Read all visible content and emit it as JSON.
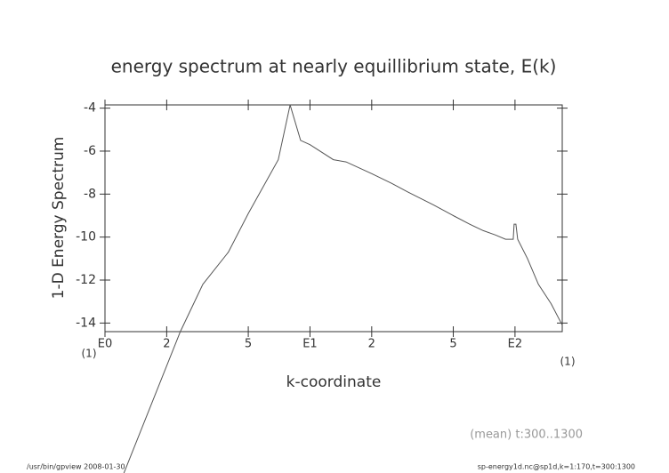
{
  "chart_data": {
    "type": "line",
    "title": "energy spectrum at nearly equillibrium state, E(k)",
    "x_label": "k-coordinate",
    "y_label": "1-D Energy Spectrum",
    "x_unit_left": "(1)",
    "x_unit_right": "(1)",
    "annotation": "(mean) t:300..1300",
    "footer_left": "/usr/bin/gpview   2008-01-30",
    "footer_right": "sp-energy1d.nc@sp1d,k=1:170,t=300:1300",
    "x_log": true,
    "xlim": [
      1,
      170
    ],
    "ylim": [
      -14.4,
      -3.85
    ],
    "xticks": [
      {
        "value": 1,
        "label": "E0"
      },
      2,
      5,
      {
        "value": 10,
        "label": "E1"
      },
      {
        "value": 20,
        "label": "2"
      },
      {
        "value": 50,
        "label": "5"
      },
      {
        "value": 100,
        "label": "E2"
      }
    ],
    "yticks": [
      -4,
      -6,
      -8,
      -10,
      -12,
      -14
    ],
    "series": [
      {
        "color": "#555555",
        "x": [
          1.2,
          2.33,
          3,
          4,
          5,
          7,
          8,
          9,
          10,
          13,
          15,
          20,
          25,
          30,
          40,
          50,
          60,
          70,
          80,
          90,
          98,
          99,
          101,
          103,
          115,
          130,
          150,
          170
        ],
        "values": [
          -21.3,
          -14.4,
          -12.2,
          -10.7,
          -8.9,
          -6.4,
          -3.85,
          -5.5,
          -5.7,
          -6.4,
          -6.5,
          -7.05,
          -7.5,
          -7.9,
          -8.5,
          -9.0,
          -9.4,
          -9.7,
          -9.9,
          -10.1,
          -10.1,
          -9.4,
          -9.4,
          -10.1,
          -11.0,
          -12.2,
          -13.1,
          -14.1
        ]
      }
    ]
  }
}
